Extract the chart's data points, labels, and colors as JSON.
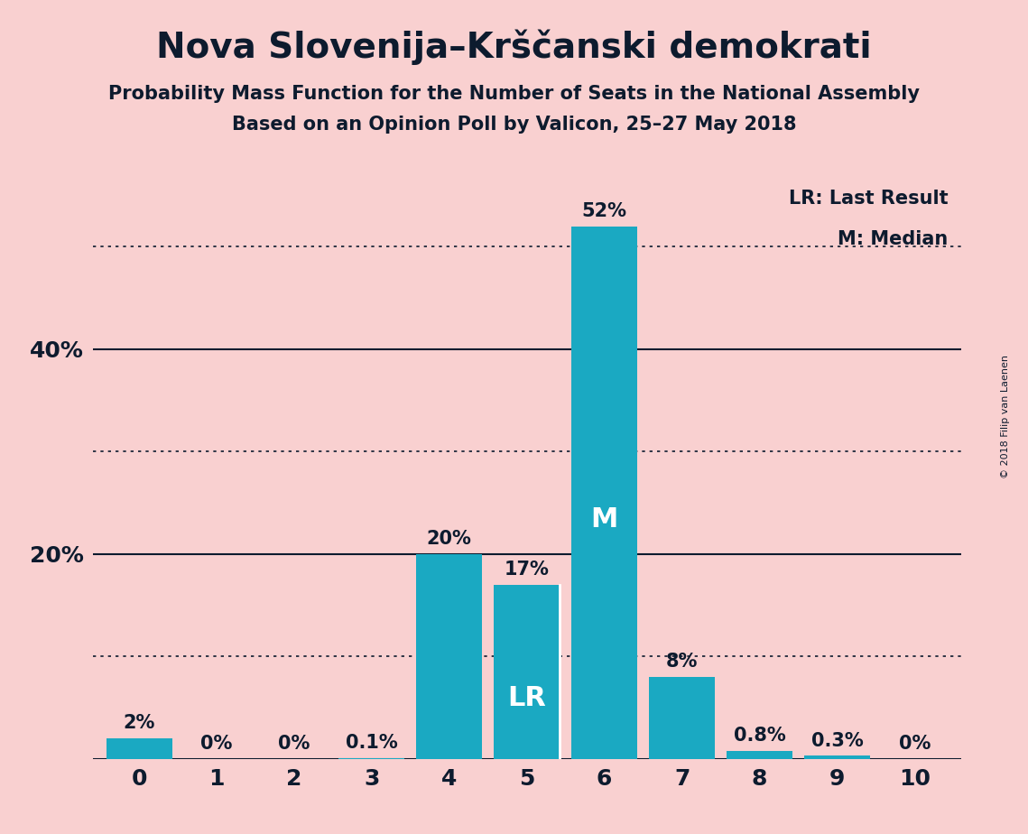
{
  "title": "Nova Slovenija–Krščanski demokrati",
  "subtitle1": "Probability Mass Function for the Number of Seats in the National Assembly",
  "subtitle2": "Based on an Opinion Poll by Valicon, 25–27 May 2018",
  "copyright": "© 2018 Filip van Laenen",
  "categories": [
    0,
    1,
    2,
    3,
    4,
    5,
    6,
    7,
    8,
    9,
    10
  ],
  "values": [
    2.0,
    0.0,
    0.0,
    0.1,
    20.0,
    17.0,
    52.0,
    8.0,
    0.8,
    0.3,
    0.0
  ],
  "labels": [
    "2%",
    "0%",
    "0%",
    "0.1%",
    "20%",
    "17%",
    "52%",
    "8%",
    "0.8%",
    "0.3%",
    "0%"
  ],
  "bar_color": "#1aa9c2",
  "background_color": "#f9d0d0",
  "text_color": "#0d1b2e",
  "lr_bar": 5,
  "median_bar": 6,
  "lr_label": "LR",
  "median_label": "M",
  "legend_lr": "LR: Last Result",
  "legend_m": "M: Median",
  "dotted_lines": [
    10,
    30,
    50
  ],
  "solid_lines": [
    20,
    40
  ],
  "ylim": [
    0,
    57
  ],
  "xlim": [
    -0.6,
    10.6
  ],
  "bar_width": 0.85
}
